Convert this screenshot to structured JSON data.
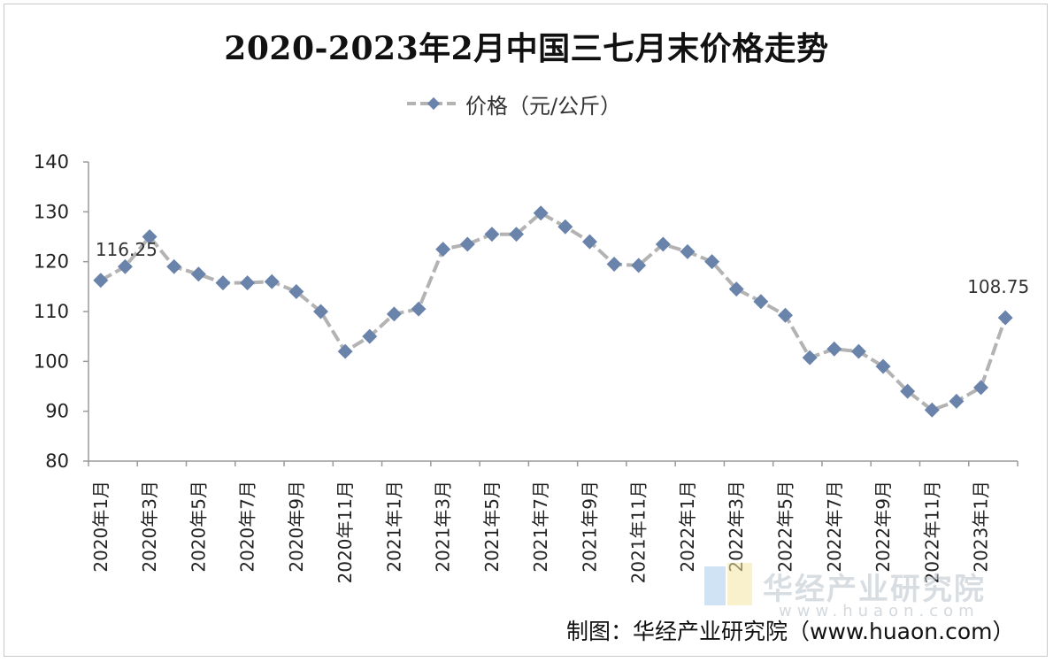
{
  "title": "2020-2023年2月中国三七月末价格走势",
  "source": "制图：华经产业研究院（www.huaon.com）",
  "watermark": {
    "name": "华经产业研究院",
    "url": "www.huaon.com"
  },
  "colors": {
    "line": "#b3b3b3",
    "marker": "#6a83aa",
    "axis": "#9a9a9a"
  },
  "chart_data": {
    "type": "line",
    "title": "2020-2023年2月中国三七月末价格走势",
    "xlabel": "",
    "ylabel": "",
    "ylim": [
      80,
      140
    ],
    "yticks": [
      80,
      90,
      100,
      110,
      120,
      130,
      140
    ],
    "legend_position": "top-center",
    "grid": false,
    "tick_labels": [
      "2020年1月",
      "2020年3月",
      "2020年5月",
      "2020年7月",
      "2020年9月",
      "2020年11月",
      "2021年1月",
      "2021年3月",
      "2021年5月",
      "2021年7月",
      "2021年9月",
      "2021年11月",
      "2022年1月",
      "2022年3月",
      "2022年5月",
      "2022年7月",
      "2022年9月",
      "2022年11月",
      "2023年1月"
    ],
    "x": [
      "2020年1月",
      "2020年2月",
      "2020年3月",
      "2020年4月",
      "2020年5月",
      "2020年6月",
      "2020年7月",
      "2020年8月",
      "2020年9月",
      "2020年10月",
      "2020年11月",
      "2020年12月",
      "2021年1月",
      "2021年2月",
      "2021年3月",
      "2021年4月",
      "2021年5月",
      "2021年6月",
      "2021年7月",
      "2021年8月",
      "2021年9月",
      "2021年10月",
      "2021年11月",
      "2021年12月",
      "2022年1月",
      "2022年2月",
      "2022年3月",
      "2022年4月",
      "2022年5月",
      "2022年6月",
      "2022年7月",
      "2022年8月",
      "2022年9月",
      "2022年10月",
      "2022年11月",
      "2022年12月",
      "2023年1月",
      "2023年2月"
    ],
    "series": [
      {
        "name": "价格（元/公斤）",
        "values": [
          116.25,
          119,
          125,
          119,
          117.5,
          115.75,
          115.75,
          116,
          114,
          110,
          102,
          105,
          109.5,
          110.5,
          122.5,
          123.5,
          125.5,
          125.5,
          129.75,
          127,
          124,
          119.5,
          119.25,
          123.5,
          122,
          120,
          114.5,
          112,
          109.25,
          100.75,
          102.5,
          102,
          99,
          94,
          90.25,
          92,
          94.75,
          108.75
        ]
      }
    ],
    "data_labels": [
      {
        "index": 0,
        "text": "116.25"
      },
      {
        "index": 37,
        "text": "108.75"
      }
    ]
  }
}
